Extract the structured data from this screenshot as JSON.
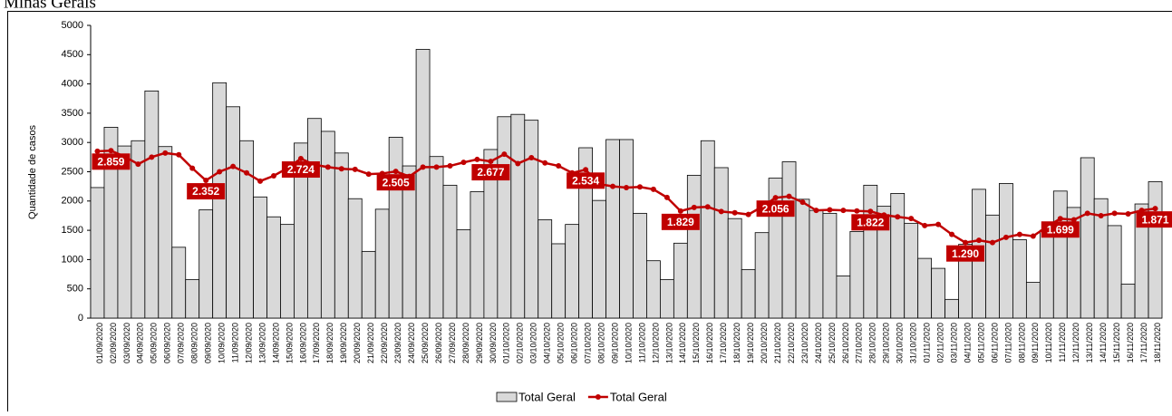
{
  "chart_data": {
    "type": "bar-line",
    "title": "Minas Gerais",
    "ylabel": "Quantidade de casos",
    "categories": [
      "01/09/2020",
      "02/09/2020",
      "03/09/2020",
      "04/09/2020",
      "05/09/2020",
      "06/09/2020",
      "07/09/2020",
      "08/09/2020",
      "09/09/2020",
      "10/09/2020",
      "11/09/2020",
      "12/09/2020",
      "13/09/2020",
      "14/09/2020",
      "15/09/2020",
      "16/09/2020",
      "17/09/2020",
      "18/09/2020",
      "19/09/2020",
      "20/09/2020",
      "21/09/2020",
      "22/09/2020",
      "23/09/2020",
      "24/09/2020",
      "25/09/2020",
      "26/09/2020",
      "27/09/2020",
      "28/09/2020",
      "29/09/2020",
      "30/09/2020",
      "01/10/2020",
      "02/10/2020",
      "03/10/2020",
      "04/10/2020",
      "05/10/2020",
      "06/10/2020",
      "07/10/2020",
      "08/10/2020",
      "09/10/2020",
      "10/10/2020",
      "11/10/2020",
      "12/10/2020",
      "13/10/2020",
      "14/10/2020",
      "15/10/2020",
      "16/10/2020",
      "17/10/2020",
      "18/10/2020",
      "19/10/2020",
      "20/10/2020",
      "21/10/2020",
      "22/10/2020",
      "23/10/2020",
      "24/10/2020",
      "25/10/2020",
      "26/10/2020",
      "27/10/2020",
      "28/10/2020",
      "29/10/2020",
      "30/10/2020",
      "31/10/2020",
      "01/11/2020",
      "02/11/2020",
      "03/11/2020",
      "04/11/2020",
      "05/11/2020",
      "06/11/2020",
      "07/11/2020",
      "08/11/2020",
      "09/11/2020",
      "10/11/2020",
      "11/11/2020",
      "12/11/2020",
      "13/11/2020",
      "14/11/2020",
      "15/11/2020",
      "16/11/2020",
      "17/11/2020",
      "18/11/2020"
    ],
    "series": [
      {
        "name": "Total Geral",
        "kind": "bar",
        "color": "#d9d9d9",
        "values": [
          2230,
          3260,
          2940,
          3030,
          3880,
          2930,
          1210,
          660,
          1850,
          4020,
          3610,
          3030,
          2070,
          1730,
          1600,
          2990,
          3410,
          3190,
          2820,
          2040,
          1140,
          1860,
          3090,
          2600,
          4590,
          2760,
          2270,
          1510,
          2160,
          2880,
          3440,
          3480,
          3380,
          1680,
          1270,
          1600,
          2910,
          2010,
          3050,
          3050,
          1790,
          980,
          660,
          1280,
          2440,
          3030,
          2570,
          1700,
          830,
          1460,
          2390,
          2670,
          2030,
          1840,
          1790,
          720,
          1480,
          2270,
          1910,
          2130,
          1620,
          1020,
          850,
          320,
          1260,
          2200,
          1760,
          2300,
          1340,
          610,
          1500,
          2170,
          1890,
          2740,
          2040,
          1580,
          580,
          1950,
          2330
        ]
      },
      {
        "name": "Total Geral",
        "kind": "line",
        "color": "#c00000",
        "values": [
          2850,
          2859,
          2760,
          2630,
          2750,
          2820,
          2790,
          2560,
          2352,
          2500,
          2590,
          2480,
          2340,
          2430,
          2560,
          2724,
          2620,
          2580,
          2550,
          2540,
          2460,
          2470,
          2505,
          2420,
          2580,
          2580,
          2600,
          2660,
          2710,
          2677,
          2800,
          2640,
          2740,
          2650,
          2600,
          2480,
          2534,
          2290,
          2250,
          2230,
          2240,
          2200,
          2060,
          1829,
          1890,
          1900,
          1820,
          1800,
          1770,
          1900,
          2056,
          2080,
          1980,
          1840,
          1850,
          1840,
          1830,
          1822,
          1760,
          1730,
          1700,
          1580,
          1600,
          1430,
          1290,
          1330,
          1290,
          1380,
          1430,
          1400,
          1560,
          1699,
          1680,
          1790,
          1750,
          1790,
          1780,
          1840,
          1871
        ],
        "value_labels": [
          null,
          "2.859",
          null,
          null,
          null,
          null,
          null,
          null,
          "2.352",
          null,
          null,
          null,
          null,
          null,
          null,
          "2.724",
          null,
          null,
          null,
          null,
          null,
          null,
          "2.505",
          null,
          null,
          null,
          null,
          null,
          null,
          "2.677",
          null,
          null,
          null,
          null,
          null,
          null,
          "2.534",
          null,
          null,
          null,
          null,
          null,
          null,
          "1.829",
          null,
          null,
          null,
          null,
          null,
          null,
          "2.056",
          null,
          null,
          null,
          null,
          null,
          null,
          "1.822",
          null,
          null,
          null,
          null,
          null,
          null,
          "1.290",
          null,
          null,
          null,
          null,
          null,
          null,
          "1.699",
          null,
          null,
          null,
          null,
          null,
          null,
          "1.871"
        ]
      }
    ],
    "ylim": [
      0,
      5000
    ],
    "yticks": [
      0,
      500,
      1000,
      1500,
      2000,
      2500,
      3000,
      3500,
      4000,
      4500,
      5000
    ],
    "legend": "bottom"
  }
}
